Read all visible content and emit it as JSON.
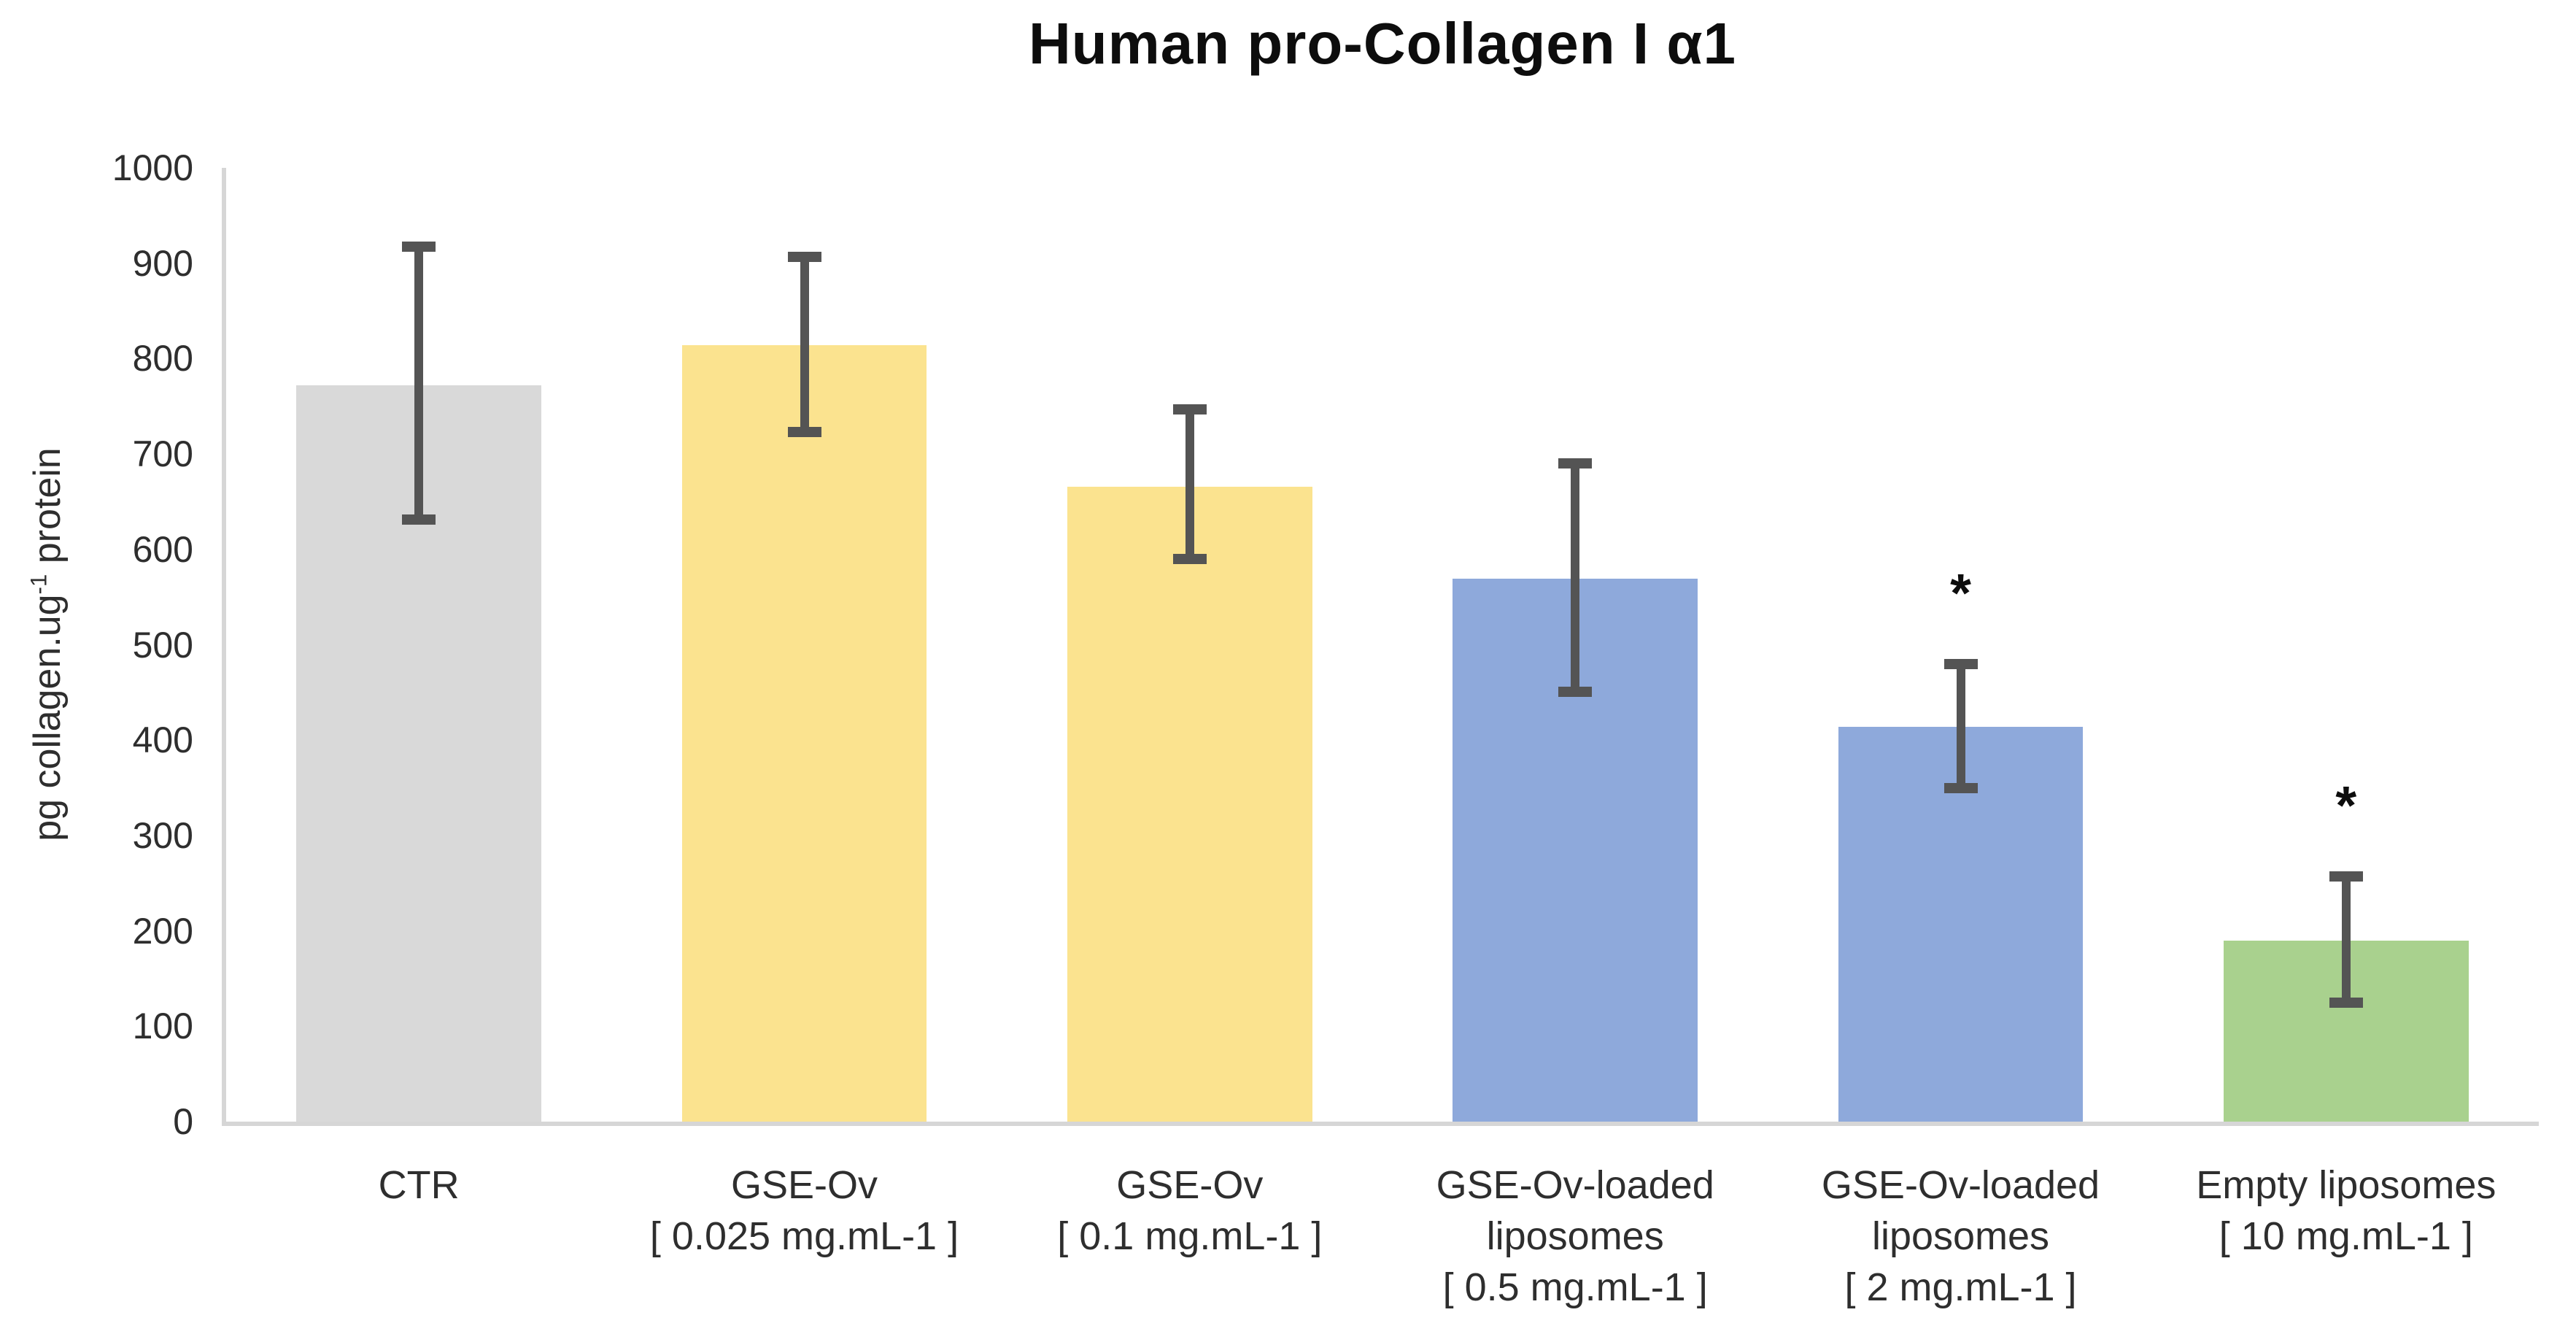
{
  "chart_data": {
    "type": "bar",
    "title": "Human pro-Collagen I α1",
    "ylabel": {
      "text": "pg collagen.ug-1 protein",
      "prefix": "pg collagen.ug",
      "superscript": "-1",
      "suffix": " protein"
    },
    "xlabel": "",
    "ylim": [
      0,
      1000
    ],
    "yticks": [
      0,
      100,
      200,
      300,
      400,
      500,
      600,
      700,
      800,
      900,
      1000
    ],
    "grid": false,
    "legend": "none",
    "categories": [
      {
        "label": "CTR",
        "lines": [
          "CTR"
        ]
      },
      {
        "label": "GSE-Ov [ 0.025 mg.mL-1 ]",
        "lines": [
          "GSE-Ov",
          "[ 0.025 mg.mL-1 ]"
        ]
      },
      {
        "label": "GSE-Ov [ 0.1 mg.mL-1 ]",
        "lines": [
          "GSE-Ov",
          "[ 0.1 mg.mL-1 ]"
        ]
      },
      {
        "label": "GSE-Ov-loaded liposomes [ 0.5 mg.mL-1 ]",
        "lines": [
          "GSE-Ov-loaded",
          "liposomes",
          "[ 0.5 mg.mL-1 ]"
        ]
      },
      {
        "label": "GSE-Ov-loaded liposomes [ 2 mg.mL-1 ]",
        "lines": [
          "GSE-Ov-loaded",
          "liposomes",
          "[ 2 mg.mL-1 ]"
        ]
      },
      {
        "label": "Empty liposomes [ 10 mg.mL-1 ]",
        "lines": [
          "Empty liposomes",
          "[ 10 mg.mL-1 ]"
        ]
      }
    ],
    "values": [
      772,
      814,
      666,
      569,
      414,
      190
    ],
    "error_bars": {
      "upper": [
        917,
        907,
        747,
        690,
        480,
        257
      ],
      "lower": [
        631,
        723,
        590,
        451,
        350,
        125
      ]
    },
    "significance": [
      "",
      "",
      "",
      "",
      "*",
      "*"
    ],
    "bar_colors": [
      "#D9D9D9",
      "#FBE38F",
      "#FBE38F",
      "#8EA9DB",
      "#8EA9DB",
      "#A9D18E"
    ],
    "error_bar_color": "#545454",
    "axis_line_color": "#D6D6D6",
    "text_color": "#2E2E2E"
  }
}
